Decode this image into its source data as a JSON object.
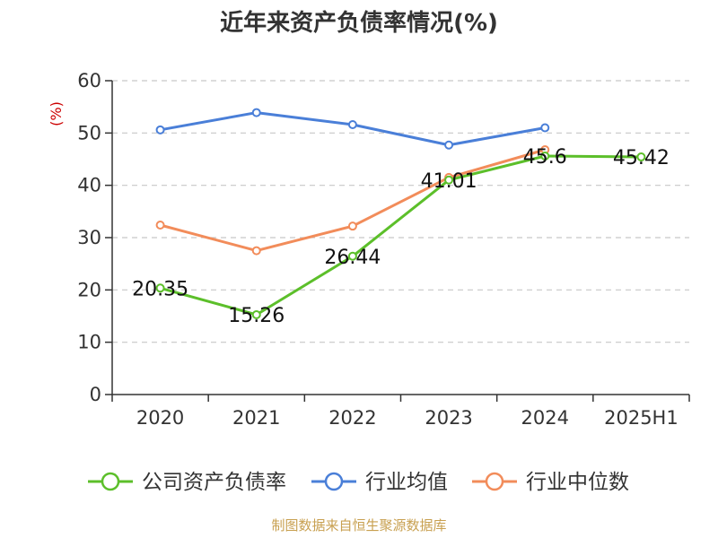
{
  "chart_data": {
    "type": "line",
    "title": "近年来资产负债率情况(%)",
    "ylabel": "(%)",
    "categories": [
      "2020",
      "2021",
      "2022",
      "2023",
      "2024",
      "2025H1"
    ],
    "ylim": [
      0,
      60
    ],
    "yticks": [
      "0",
      "10",
      "20",
      "30",
      "40",
      "50",
      "60"
    ],
    "grid": true,
    "legend_position": "bottom",
    "series": [
      {
        "name": "公司资产负债率",
        "color": "#5cbf2a",
        "values": [
          20.35,
          15.26,
          26.44,
          41.01,
          45.6,
          45.42
        ],
        "labels": [
          "20.35",
          "15.26",
          "26.44",
          "41.01",
          "45.6",
          "45.42"
        ]
      },
      {
        "name": "行业均值",
        "color": "#4a7fd8",
        "values": [
          50.6,
          53.9,
          51.6,
          47.7,
          51.0,
          null
        ]
      },
      {
        "name": "行业中位数",
        "color": "#f28c5a",
        "values": [
          32.4,
          27.5,
          32.2,
          41.5,
          46.8,
          null
        ]
      }
    ]
  },
  "footer": {
    "source": "制图数据来自恒生聚源数据库"
  }
}
